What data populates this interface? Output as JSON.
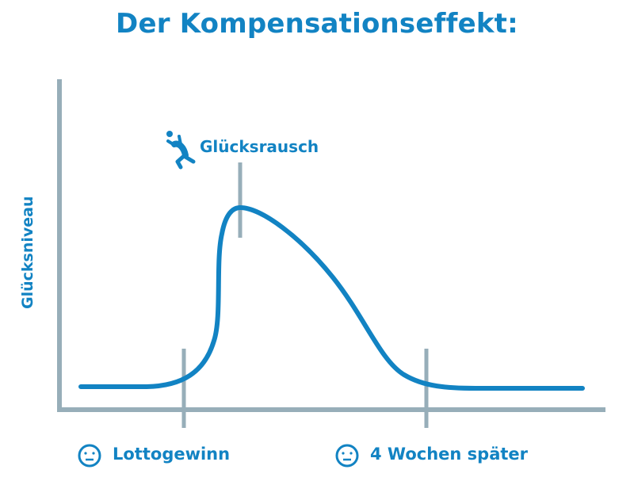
{
  "title": "Der Kompensationseffekt:",
  "y_axis_label": "Glücksniveau",
  "peak_label": "Glücksrausch",
  "peak_icon": "jumping-person-icon",
  "x_markers": [
    {
      "label": "Lottogewinn",
      "icon": "neutral-face-icon"
    },
    {
      "label": "4 Wochen später",
      "icon": "neutral-face-icon"
    }
  ],
  "colors": {
    "accent": "#1283c3",
    "axis": "#97aeb9",
    "background": "#ffffff"
  }
}
